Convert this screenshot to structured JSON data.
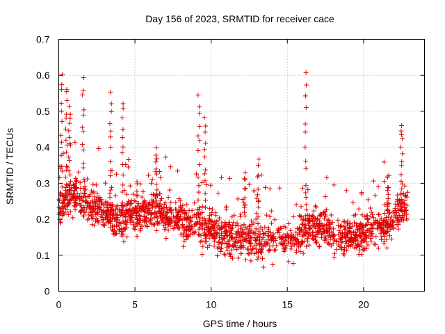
{
  "chart_data": {
    "type": "scatter",
    "title": "Day 156 of 2023, SRMTID for receiver cace",
    "xlabel": "GPS time / hours",
    "ylabel": "SRMTID / TECUs",
    "xlim": [
      0,
      24
    ],
    "ylim": [
      0,
      0.7
    ],
    "xticks": [
      0,
      5,
      10,
      15,
      20
    ],
    "xtick_labels": [
      "0",
      "5",
      "10",
      "15",
      "20"
    ],
    "yticks": [
      0,
      0.1,
      0.2,
      0.3,
      0.4,
      0.5,
      0.6,
      0.7
    ],
    "ytick_labels": [
      "0",
      "0.1",
      "0.2",
      "0.3",
      "0.4",
      "0.5",
      "0.6",
      "0.7"
    ],
    "grid": true,
    "marker": "+",
    "color": "#e00000",
    "baseline": [
      [
        0.0,
        0.23
      ],
      [
        0.5,
        0.26
      ],
      [
        1.0,
        0.27
      ],
      [
        1.5,
        0.26
      ],
      [
        2.0,
        0.24
      ],
      [
        2.5,
        0.23
      ],
      [
        3.0,
        0.22
      ],
      [
        3.5,
        0.21
      ],
      [
        4.0,
        0.2
      ],
      [
        4.5,
        0.21
      ],
      [
        5.0,
        0.22
      ],
      [
        5.5,
        0.22
      ],
      [
        6.0,
        0.23
      ],
      [
        6.5,
        0.22
      ],
      [
        7.0,
        0.21
      ],
      [
        7.5,
        0.2
      ],
      [
        8.0,
        0.2
      ],
      [
        8.5,
        0.19
      ],
      [
        9.0,
        0.19
      ],
      [
        9.5,
        0.18
      ],
      [
        10.0,
        0.17
      ],
      [
        10.5,
        0.16
      ],
      [
        11.0,
        0.15
      ],
      [
        11.5,
        0.15
      ],
      [
        12.0,
        0.15
      ],
      [
        12.5,
        0.15
      ],
      [
        13.0,
        0.14
      ],
      [
        13.5,
        0.14
      ],
      [
        14.0,
        0.15
      ],
      [
        14.5,
        0.15
      ],
      [
        15.0,
        0.14
      ],
      [
        15.5,
        0.15
      ],
      [
        16.0,
        0.16
      ],
      [
        16.5,
        0.18
      ],
      [
        17.0,
        0.18
      ],
      [
        17.5,
        0.17
      ],
      [
        18.0,
        0.16
      ],
      [
        18.5,
        0.15
      ],
      [
        19.0,
        0.15
      ],
      [
        19.5,
        0.15
      ],
      [
        20.0,
        0.16
      ],
      [
        20.5,
        0.17
      ],
      [
        21.0,
        0.17
      ],
      [
        21.5,
        0.18
      ],
      [
        22.0,
        0.2
      ],
      [
        22.5,
        0.23
      ],
      [
        22.9,
        0.24
      ]
    ],
    "bursts": [
      {
        "time": 0.2,
        "peak": 0.61
      },
      {
        "time": 0.5,
        "peak": 0.57
      },
      {
        "time": 0.7,
        "peak": 0.52
      },
      {
        "time": 1.6,
        "peak": 0.59
      },
      {
        "time": 3.4,
        "peak": 0.55
      },
      {
        "time": 4.2,
        "peak": 0.53
      },
      {
        "time": 9.2,
        "peak": 0.55
      },
      {
        "time": 9.6,
        "peak": 0.49
      },
      {
        "time": 16.2,
        "peak": 0.6
      },
      {
        "time": 22.5,
        "peak": 0.47
      },
      {
        "time": 12.2,
        "peak": 0.33
      },
      {
        "time": 13.1,
        "peak": 0.36
      },
      {
        "time": 6.4,
        "peak": 0.4
      },
      {
        "time": 21.6,
        "peak": 0.33
      }
    ],
    "n_points": 1800
  }
}
